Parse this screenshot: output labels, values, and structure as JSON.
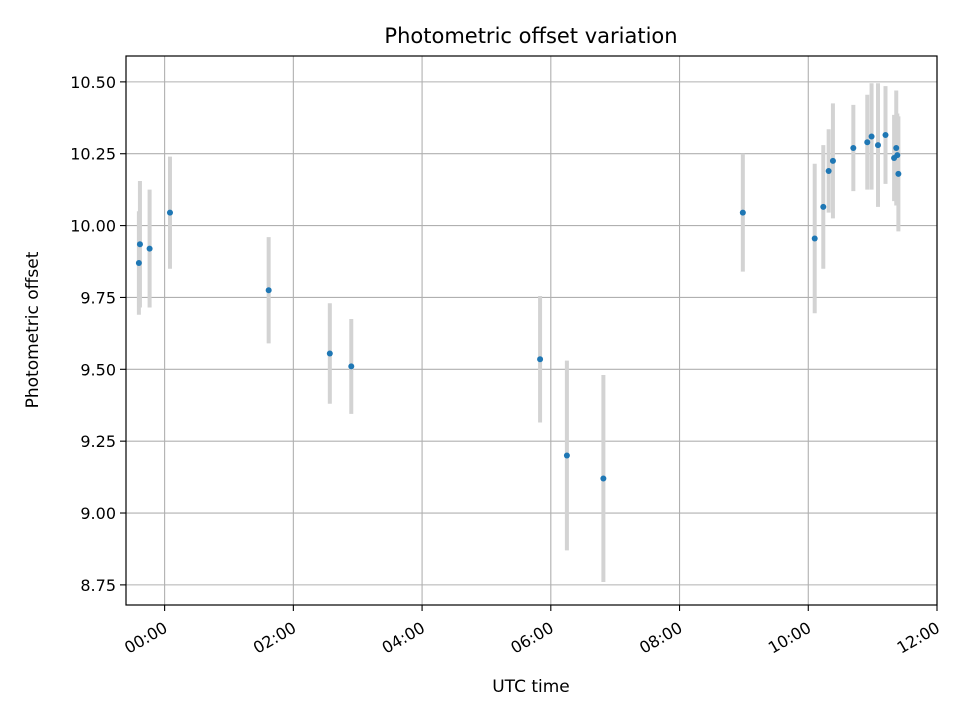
{
  "chart_data": {
    "type": "scatter",
    "title": "Photometric offset variation",
    "xlabel": "UTC time",
    "ylabel": "Photometric offset",
    "x_unit": "UTC time (HH:MM)",
    "xlim": [
      "-00:36",
      "12:00"
    ],
    "ylim": [
      8.68,
      10.59
    ],
    "grid": true,
    "x_ticks": [
      "00:00",
      "02:00",
      "04:00",
      "06:00",
      "08:00",
      "10:00",
      "12:00"
    ],
    "y_ticks": [
      8.75,
      9.0,
      9.25,
      9.5,
      9.75,
      10.0,
      10.25,
      10.5
    ],
    "y_tick_labels": [
      "8.75",
      "9.00",
      "9.25",
      "9.50",
      "9.75",
      "10.00",
      "10.25",
      "10.50"
    ],
    "point_color": "#1f77b4",
    "errorbar_color": "#d3d3d3",
    "points": [
      {
        "x": "-00:24",
        "y": 9.87,
        "err": 0.18
      },
      {
        "x": "-00:23",
        "y": 9.935,
        "err": 0.22
      },
      {
        "x": "-00:14",
        "y": 9.92,
        "err": 0.205
      },
      {
        "x": "00:05",
        "y": 10.045,
        "err": 0.195
      },
      {
        "x": "01:37",
        "y": 9.775,
        "err": 0.185
      },
      {
        "x": "02:34",
        "y": 9.555,
        "err": 0.175
      },
      {
        "x": "02:54",
        "y": 9.51,
        "err": 0.165
      },
      {
        "x": "05:50",
        "y": 9.535,
        "err": 0.22
      },
      {
        "x": "06:15",
        "y": 9.2,
        "err": 0.33
      },
      {
        "x": "06:49",
        "y": 9.12,
        "err": 0.36
      },
      {
        "x": "08:59",
        "y": 10.045,
        "err": 0.205
      },
      {
        "x": "10:06",
        "y": 9.955,
        "err": 0.26
      },
      {
        "x": "10:14",
        "y": 10.065,
        "err": 0.215
      },
      {
        "x": "10:19",
        "y": 10.19,
        "err": 0.145
      },
      {
        "x": "10:23",
        "y": 10.225,
        "err": 0.2
      },
      {
        "x": "10:42",
        "y": 10.27,
        "err": 0.15
      },
      {
        "x": "10:55",
        "y": 10.29,
        "err": 0.165
      },
      {
        "x": "10:59",
        "y": 10.31,
        "err": 0.185
      },
      {
        "x": "11:05",
        "y": 10.28,
        "err": 0.215
      },
      {
        "x": "11:12",
        "y": 10.315,
        "err": 0.17
      },
      {
        "x": "11:20",
        "y": 10.235,
        "err": 0.15
      },
      {
        "x": "11:22",
        "y": 10.27,
        "err": 0.2
      },
      {
        "x": "11:23",
        "y": 10.245,
        "err": 0.145
      },
      {
        "x": "11:24",
        "y": 10.18,
        "err": 0.2
      }
    ]
  }
}
